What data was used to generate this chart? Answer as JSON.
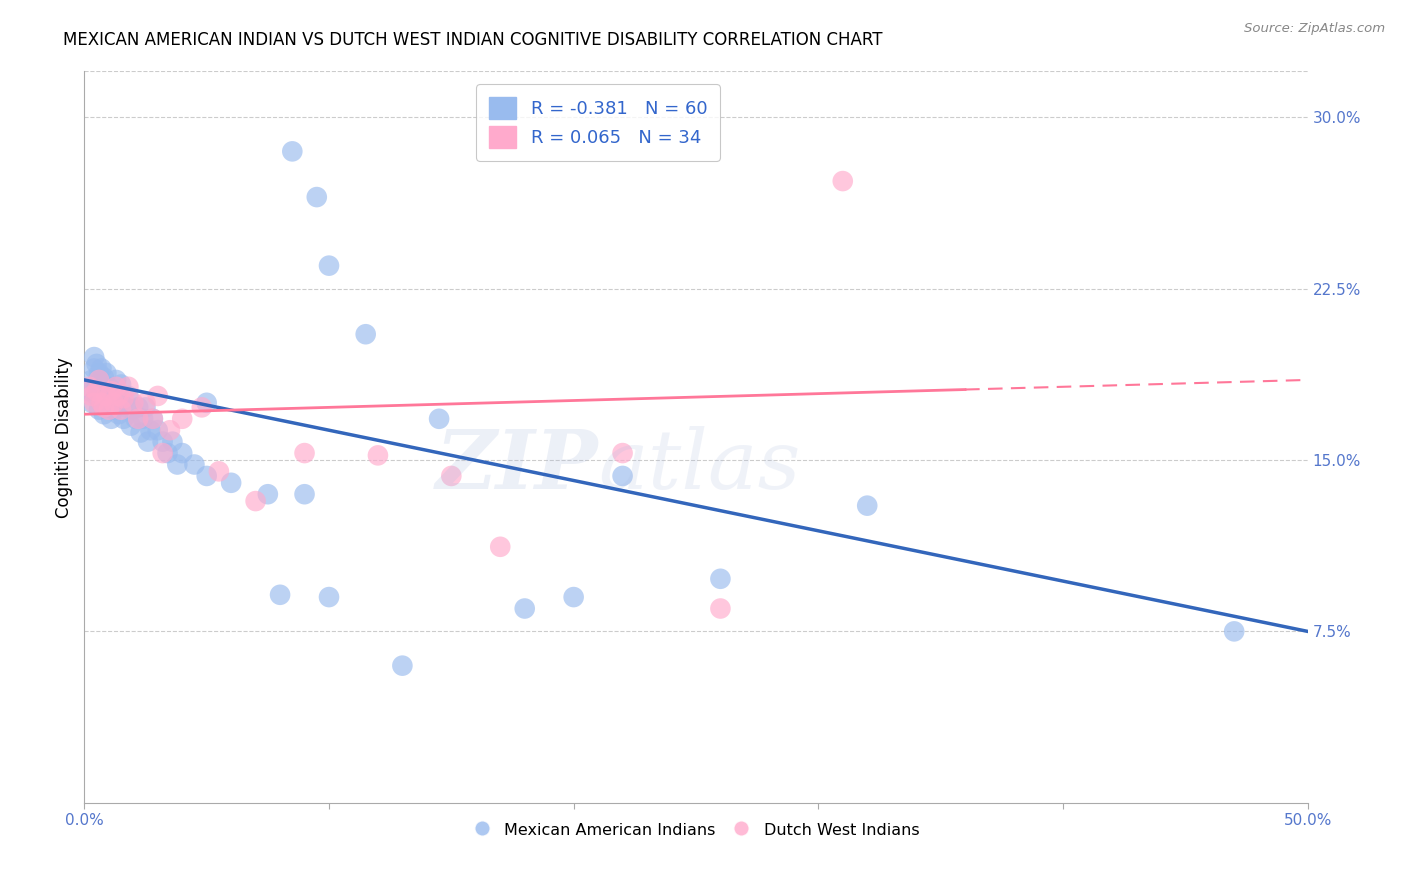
{
  "title": "MEXICAN AMERICAN INDIAN VS DUTCH WEST INDIAN COGNITIVE DISABILITY CORRELATION CHART",
  "source": "Source: ZipAtlas.com",
  "ylabel": "Cognitive Disability",
  "xlim": [
    0.0,
    0.5
  ],
  "ylim": [
    0.0,
    0.32
  ],
  "xticks": [
    0.0,
    0.1,
    0.2,
    0.3,
    0.4,
    0.5
  ],
  "xtick_labels": [
    "0.0%",
    "",
    "",
    "",
    "",
    "50.0%"
  ],
  "yticks_right": [
    0.075,
    0.15,
    0.225,
    0.3
  ],
  "ytick_labels_right": [
    "7.5%",
    "15.0%",
    "22.5%",
    "30.0%"
  ],
  "legend_r1": "-0.381",
  "legend_n1": "60",
  "legend_r2": "0.065",
  "legend_n2": "34",
  "color_blue": "#99BBEE",
  "color_pink": "#FFAACC",
  "color_blue_line": "#3366BB",
  "color_pink_line": "#FF7799",
  "color_axis_text": "#5577CC",
  "watermark": "ZIPatlas",
  "blue_scatter_x": [
    0.002,
    0.003,
    0.003,
    0.004,
    0.004,
    0.005,
    0.005,
    0.005,
    0.006,
    0.006,
    0.006,
    0.007,
    0.007,
    0.007,
    0.008,
    0.008,
    0.008,
    0.009,
    0.009,
    0.009,
    0.01,
    0.01,
    0.011,
    0.011,
    0.012,
    0.013,
    0.013,
    0.014,
    0.015,
    0.015,
    0.016,
    0.017,
    0.018,
    0.019,
    0.02,
    0.021,
    0.022,
    0.023,
    0.024,
    0.025,
    0.026,
    0.027,
    0.028,
    0.03,
    0.032,
    0.034,
    0.036,
    0.038,
    0.04,
    0.045,
    0.05,
    0.06,
    0.075,
    0.08,
    0.09,
    0.1,
    0.13,
    0.18,
    0.32,
    0.47
  ],
  "blue_scatter_y": [
    0.18,
    0.175,
    0.185,
    0.19,
    0.195,
    0.178,
    0.183,
    0.192,
    0.172,
    0.18,
    0.188,
    0.175,
    0.182,
    0.19,
    0.17,
    0.177,
    0.186,
    0.173,
    0.18,
    0.188,
    0.175,
    0.182,
    0.168,
    0.176,
    0.172,
    0.178,
    0.185,
    0.17,
    0.175,
    0.183,
    0.168,
    0.173,
    0.178,
    0.165,
    0.172,
    0.168,
    0.173,
    0.162,
    0.168,
    0.173,
    0.158,
    0.163,
    0.168,
    0.163,
    0.158,
    0.153,
    0.158,
    0.148,
    0.153,
    0.148,
    0.143,
    0.14,
    0.135,
    0.091,
    0.135,
    0.09,
    0.06,
    0.085,
    0.13,
    0.075
  ],
  "blue_scatter_extra_x": [
    0.05,
    0.085,
    0.095,
    0.1,
    0.115,
    0.145,
    0.2,
    0.22,
    0.26
  ],
  "blue_scatter_extra_y": [
    0.175,
    0.285,
    0.265,
    0.235,
    0.205,
    0.168,
    0.09,
    0.143,
    0.098
  ],
  "pink_scatter_x": [
    0.002,
    0.003,
    0.004,
    0.005,
    0.006,
    0.007,
    0.008,
    0.009,
    0.01,
    0.011,
    0.012,
    0.013,
    0.014,
    0.015,
    0.016,
    0.018,
    0.02,
    0.022,
    0.025,
    0.028,
    0.03,
    0.032,
    0.035,
    0.04,
    0.048,
    0.055,
    0.07,
    0.09,
    0.12,
    0.15,
    0.17,
    0.22,
    0.26,
    0.31
  ],
  "pink_scatter_y": [
    0.182,
    0.178,
    0.175,
    0.18,
    0.185,
    0.175,
    0.173,
    0.178,
    0.172,
    0.18,
    0.175,
    0.182,
    0.178,
    0.172,
    0.177,
    0.182,
    0.175,
    0.168,
    0.175,
    0.168,
    0.178,
    0.153,
    0.163,
    0.168,
    0.173,
    0.145,
    0.132,
    0.153,
    0.152,
    0.143,
    0.112,
    0.153,
    0.085,
    0.272
  ],
  "blue_line_x": [
    0.0,
    0.5
  ],
  "blue_line_y": [
    0.185,
    0.075
  ],
  "pink_line_x": [
    0.0,
    0.5
  ],
  "pink_line_y": [
    0.17,
    0.185
  ]
}
